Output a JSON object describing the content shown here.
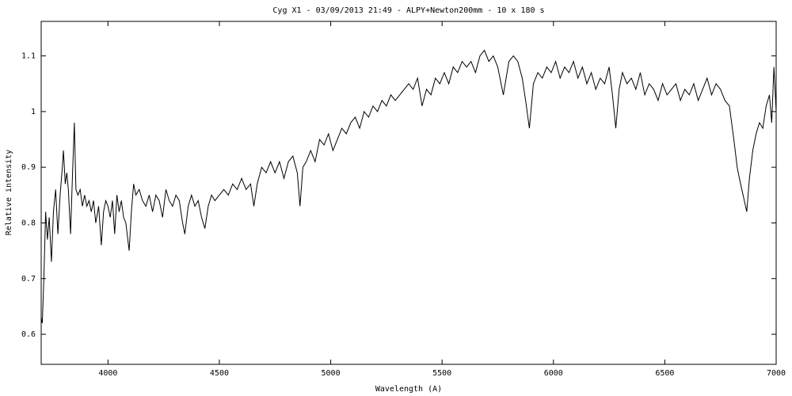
{
  "chart_data": {
    "type": "line",
    "title": "Cyg X1 - 03/09/2013 21:49 - ALPY+Newton200mm - 10 x 180 s",
    "x_label": "Wavelength (A)",
    "y_label": "Relative intensity",
    "xlim": [
      3700,
      7000
    ],
    "ylim": [
      0.546,
      1.162
    ],
    "xticks": [
      4000,
      4500,
      5000,
      5500,
      6000,
      6500,
      7000
    ],
    "yticks": [
      0.6,
      0.7,
      0.8,
      0.9,
      1,
      1.1
    ],
    "color": "#000000",
    "x": [
      3700,
      3705,
      3712,
      3720,
      3728,
      3736,
      3746,
      3755,
      3765,
      3775,
      3785,
      3795,
      3800,
      3808,
      3815,
      3822,
      3832,
      3840,
      3849,
      3856,
      3865,
      3875,
      3885,
      3895,
      3905,
      3915,
      3925,
      3935,
      3945,
      3958,
      3970,
      3980,
      3990,
      4000,
      4010,
      4020,
      4030,
      4040,
      4050,
      4060,
      4070,
      4080,
      4095,
      4105,
      4115,
      4125,
      4140,
      4155,
      4170,
      4185,
      4200,
      4215,
      4230,
      4245,
      4260,
      4275,
      4290,
      4305,
      4320,
      4335,
      4345,
      4360,
      4375,
      4390,
      4405,
      4420,
      4435,
      4450,
      4465,
      4480,
      4500,
      4520,
      4540,
      4560,
      4580,
      4600,
      4620,
      4640,
      4655,
      4670,
      4690,
      4710,
      4730,
      4750,
      4770,
      4790,
      4810,
      4830,
      4850,
      4862,
      4875,
      4890,
      4910,
      4930,
      4950,
      4970,
      4990,
      5010,
      5030,
      5050,
      5070,
      5090,
      5110,
      5130,
      5150,
      5170,
      5190,
      5210,
      5230,
      5250,
      5270,
      5290,
      5310,
      5330,
      5350,
      5370,
      5390,
      5410,
      5430,
      5450,
      5470,
      5490,
      5510,
      5530,
      5550,
      5570,
      5590,
      5610,
      5630,
      5650,
      5670,
      5690,
      5710,
      5730,
      5750,
      5775,
      5800,
      5820,
      5840,
      5860,
      5875,
      5892,
      5910,
      5930,
      5950,
      5970,
      5990,
      6010,
      6030,
      6050,
      6070,
      6090,
      6110,
      6130,
      6150,
      6170,
      6190,
      6210,
      6230,
      6250,
      6265,
      6280,
      6295,
      6310,
      6330,
      6350,
      6370,
      6390,
      6410,
      6430,
      6450,
      6470,
      6490,
      6510,
      6530,
      6550,
      6570,
      6590,
      6610,
      6630,
      6650,
      6670,
      6690,
      6710,
      6730,
      6750,
      6770,
      6790,
      6810,
      6825,
      6835,
      6868,
      6880,
      6895,
      6910,
      6925,
      6940,
      6955,
      6970,
      6980,
      6990,
      7000
    ],
    "values": [
      0.63,
      0.62,
      0.7,
      0.82,
      0.77,
      0.81,
      0.73,
      0.82,
      0.86,
      0.78,
      0.85,
      0.9,
      0.93,
      0.87,
      0.89,
      0.86,
      0.78,
      0.88,
      0.98,
      0.86,
      0.85,
      0.86,
      0.83,
      0.85,
      0.83,
      0.84,
      0.82,
      0.84,
      0.8,
      0.83,
      0.76,
      0.82,
      0.84,
      0.83,
      0.81,
      0.84,
      0.78,
      0.85,
      0.82,
      0.84,
      0.81,
      0.8,
      0.75,
      0.82,
      0.87,
      0.85,
      0.86,
      0.84,
      0.83,
      0.85,
      0.82,
      0.85,
      0.84,
      0.81,
      0.86,
      0.84,
      0.83,
      0.85,
      0.84,
      0.8,
      0.78,
      0.83,
      0.85,
      0.83,
      0.84,
      0.81,
      0.79,
      0.83,
      0.85,
      0.84,
      0.85,
      0.86,
      0.85,
      0.87,
      0.86,
      0.88,
      0.86,
      0.87,
      0.83,
      0.87,
      0.9,
      0.89,
      0.91,
      0.89,
      0.91,
      0.88,
      0.91,
      0.92,
      0.89,
      0.83,
      0.9,
      0.91,
      0.93,
      0.91,
      0.95,
      0.94,
      0.96,
      0.93,
      0.95,
      0.97,
      0.96,
      0.98,
      0.99,
      0.97,
      1.0,
      0.99,
      1.01,
      1.0,
      1.02,
      1.01,
      1.03,
      1.02,
      1.03,
      1.04,
      1.05,
      1.04,
      1.06,
      1.01,
      1.04,
      1.03,
      1.06,
      1.05,
      1.07,
      1.05,
      1.08,
      1.07,
      1.09,
      1.08,
      1.09,
      1.07,
      1.1,
      1.11,
      1.09,
      1.1,
      1.08,
      1.03,
      1.09,
      1.1,
      1.09,
      1.06,
      1.02,
      0.97,
      1.05,
      1.07,
      1.06,
      1.08,
      1.07,
      1.09,
      1.06,
      1.08,
      1.07,
      1.09,
      1.06,
      1.08,
      1.05,
      1.07,
      1.04,
      1.06,
      1.05,
      1.08,
      1.03,
      0.97,
      1.04,
      1.07,
      1.05,
      1.06,
      1.04,
      1.07,
      1.03,
      1.05,
      1.04,
      1.02,
      1.05,
      1.03,
      1.04,
      1.05,
      1.02,
      1.04,
      1.03,
      1.05,
      1.02,
      1.04,
      1.06,
      1.03,
      1.05,
      1.04,
      1.02,
      1.01,
      0.95,
      0.9,
      0.88,
      0.82,
      0.88,
      0.93,
      0.96,
      0.98,
      0.97,
      1.01,
      1.03,
      0.98,
      1.08,
      1.0
    ]
  }
}
